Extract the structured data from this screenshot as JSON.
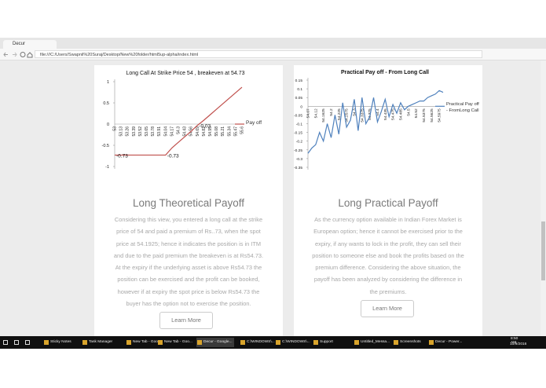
{
  "browser": {
    "tab_title": "Decur",
    "address": "file:///C:/Users/Swapnil%20Suraj/Desktop/New%20folder/html5up-alpha/index.html"
  },
  "cards": [
    {
      "chart": {
        "type": "line",
        "title": "Long Call At Strike Price 54 , breakeven at 54.73",
        "categories": [
          "53",
          "53.13",
          "53.26",
          "53.39",
          "53.52",
          "53.65",
          "53.78",
          "53.91",
          "54.04",
          "54.17",
          "54.3",
          "54.43",
          "54.56",
          "54.69",
          "54.82",
          "54.95",
          "55.08",
          "55.21",
          "55.34",
          "55.47",
          "55.6"
        ],
        "series": [
          {
            "name": "Pay off",
            "color": "#c0504d",
            "values": [
              -0.73,
              -0.73,
              -0.73,
              -0.73,
              -0.73,
              -0.73,
              -0.73,
              -0.73,
              -0.73,
              -0.56,
              -0.43,
              -0.3,
              -0.17,
              -0.03,
              0.09,
              0.22,
              0.35,
              0.48,
              0.61,
              0.74,
              0.87
            ],
            "value_labels": [
              "-0.73",
              null,
              null,
              null,
              null,
              null,
              null,
              null,
              "-0.73",
              null,
              null,
              null,
              null,
              "-0.03",
              null,
              null,
              null,
              null,
              null,
              null,
              null
            ]
          }
        ],
        "ylim": [
          -1,
          1
        ],
        "yticks": [
          1,
          0.5,
          0,
          -0.5,
          -1
        ]
      },
      "heading": "Long Theoretical Payoff",
      "text": "Considering this view, you entered a long call at the strike price of 54 and paid a premium of Rs..73, when the spot price at 54.1925; hence it indicates the position is in ITM and due to the paid premium the breakeven is at Rs54.73. At the expiry if the underlying asset is above Rs54.73 the position can be exercised and the profit can be booked, however if at expiry the spot price is below Rs54.73 the buyer has the option not to exercise the position.",
      "button": "Learn More"
    },
    {
      "chart": {
        "type": "line",
        "title": "Practical Pay off - From Long Call",
        "categories": [
          "54.07",
          null,
          "54.12",
          null,
          "54.1625",
          null,
          "54.2",
          null,
          "54.225",
          null,
          "54.2575",
          null,
          "54.3",
          null,
          "54.3375",
          null,
          "54.375",
          null,
          "54.4",
          null,
          "54.435",
          null,
          "54.475",
          null,
          "54.485",
          null,
          "54.5",
          null,
          "54.52",
          null,
          "54.5375",
          null,
          "54.5625",
          null,
          "54.5975",
          null
        ],
        "series": [
          {
            "name": "Practical Pay off - FromLong Call",
            "color": "#4f81bd",
            "values": [
              -0.27,
              -0.24,
              -0.22,
              -0.15,
              -0.2,
              -0.1,
              -0.18,
              -0.05,
              -0.16,
              0.02,
              -0.12,
              -0.08,
              0.04,
              -0.14,
              0.05,
              -0.1,
              -0.06,
              0.05,
              -0.09,
              -0.03,
              0.04,
              -0.06,
              0.01,
              -0.04,
              0.02,
              -0.02,
              0,
              0.01,
              0.02,
              0.03,
              0.03,
              0.05,
              0.06,
              0.07,
              0.09,
              0.08
            ]
          }
        ],
        "ylim": [
          -0.35,
          0.15
        ],
        "yticks": [
          0.15,
          0.1,
          0.05,
          0,
          -0.05,
          -0.1,
          -0.15,
          -0.2,
          -0.25,
          -0.3,
          -0.35
        ]
      },
      "heading": "Long Practical Payoff",
      "text": "As the currency option available in Indian Forex Market is European option; hence it cannot be exercised prior to the expiry, if any wants to lock in the profit, they can sell their position to someone else and book the profits based on the premium difference. Considering the above situation, the payoff has been analyzed by considering the difference in the premiums.",
      "button": "Learn More"
    }
  ],
  "taskbar": {
    "items": [
      "Sticky Notes",
      "Task Manager",
      "New Tab - Goo...",
      "New Tab - Goo...",
      "Decur - Google...",
      "C:\\WINDOWS\\...",
      "C:\\WINDOWS\\...",
      "Support",
      "Untitled_Messa...",
      "Screenshots",
      "Decur - Power..."
    ],
    "time": "8:50 AM",
    "date": "10/9/2016"
  }
}
